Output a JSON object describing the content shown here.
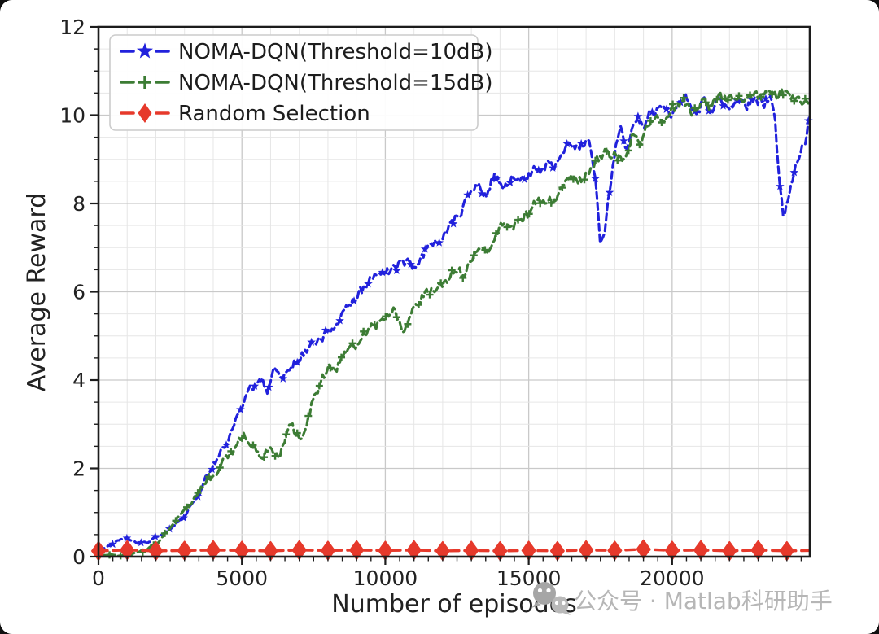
{
  "figure": {
    "background": "#ffffff",
    "page_background": "#101010",
    "spine_color": "#1c1c1c",
    "text_color": "#222222",
    "grid_minor_color": "#e6e6e6",
    "grid_major_color": "#c9c9c9"
  },
  "watermark": {
    "text": "公众号 · Matlab科研助手",
    "color": "#b6b6b6",
    "icon": "wechat-icon",
    "icon_color_big": "#a6a6a6",
    "icon_color_small": "#b9b9b9"
  },
  "chart_data": {
    "type": "line",
    "title": "",
    "xlabel": "Number of episodes",
    "ylabel": "Average Reward",
    "xlim": [
      0,
      24800
    ],
    "ylim": [
      0,
      12
    ],
    "x_ticks": [
      0,
      5000,
      10000,
      15000,
      20000
    ],
    "x_tick_labels": [
      "0",
      "5000",
      "10000",
      "15000",
      "20000"
    ],
    "x_minor_tick_step": 500,
    "x_minor_grid_step": 1000,
    "y_ticks": [
      0,
      2,
      4,
      6,
      8,
      10,
      12
    ],
    "y_tick_labels": [
      "0",
      "2",
      "4",
      "6",
      "8",
      "10",
      "12"
    ],
    "y_minor_step": 0.5,
    "grid": true,
    "legend_position": "upper-left",
    "series": [
      {
        "name": "NOMA-DQN(Threshold=10dB)",
        "color": "#2121dc",
        "style": "dashed",
        "marker": "star",
        "noise_amp": 0.16,
        "seed": 41,
        "marker_every": 9,
        "points": [
          [
            0,
            0.15
          ],
          [
            500,
            0.28
          ],
          [
            900,
            0.42
          ],
          [
            1300,
            0.32
          ],
          [
            1700,
            0.3
          ],
          [
            2000,
            0.45
          ],
          [
            2400,
            0.6
          ],
          [
            2700,
            0.72
          ],
          [
            3000,
            0.95
          ],
          [
            3300,
            1.2
          ],
          [
            3600,
            1.6
          ],
          [
            3900,
            2.0
          ],
          [
            4150,
            2.2
          ],
          [
            4400,
            2.5
          ],
          [
            4700,
            3.0
          ],
          [
            5000,
            3.5
          ],
          [
            5300,
            3.8
          ],
          [
            5500,
            3.9
          ],
          [
            5700,
            4.0
          ],
          [
            5900,
            3.85
          ],
          [
            6100,
            4.2
          ],
          [
            6400,
            4.1
          ],
          [
            6700,
            4.35
          ],
          [
            7000,
            4.5
          ],
          [
            7300,
            4.7
          ],
          [
            7600,
            4.9
          ],
          [
            8000,
            5.15
          ],
          [
            8300,
            5.3
          ],
          [
            8600,
            5.55
          ],
          [
            9000,
            5.85
          ],
          [
            9300,
            6.1
          ],
          [
            9600,
            6.3
          ],
          [
            9900,
            6.55
          ],
          [
            10200,
            6.5
          ],
          [
            10500,
            6.65
          ],
          [
            10800,
            6.75
          ],
          [
            11100,
            6.6
          ],
          [
            11400,
            6.9
          ],
          [
            11700,
            7.1
          ],
          [
            12000,
            7.25
          ],
          [
            12300,
            7.55
          ],
          [
            12600,
            7.8
          ],
          [
            12900,
            8.1
          ],
          [
            13200,
            8.4
          ],
          [
            13500,
            8.2
          ],
          [
            13800,
            8.55
          ],
          [
            14100,
            8.3
          ],
          [
            14400,
            8.6
          ],
          [
            14700,
            8.5
          ],
          [
            15000,
            8.65
          ],
          [
            15300,
            8.75
          ],
          [
            15600,
            8.95
          ],
          [
            15900,
            8.85
          ],
          [
            16200,
            9.05
          ],
          [
            16500,
            9.35
          ],
          [
            16800,
            9.2
          ],
          [
            17000,
            9.45
          ],
          [
            17200,
            9.1
          ],
          [
            17350,
            8.3
          ],
          [
            17500,
            6.95
          ],
          [
            17650,
            7.4
          ],
          [
            17800,
            8.2
          ],
          [
            18000,
            9.25
          ],
          [
            18200,
            9.7
          ],
          [
            18400,
            9.15
          ],
          [
            18600,
            9.6
          ],
          [
            18800,
            9.9
          ],
          [
            19000,
            9.7
          ],
          [
            19300,
            10.05
          ],
          [
            19600,
            10.15
          ],
          [
            19900,
            9.9
          ],
          [
            20200,
            10.25
          ],
          [
            20500,
            10.4
          ],
          [
            20800,
            10.1
          ],
          [
            21100,
            10.3
          ],
          [
            21400,
            10.15
          ],
          [
            21700,
            10.4
          ],
          [
            22000,
            10.1
          ],
          [
            22300,
            10.35
          ],
          [
            22600,
            10.2
          ],
          [
            22900,
            10.4
          ],
          [
            23200,
            10.25
          ],
          [
            23450,
            10.4
          ],
          [
            23600,
            9.7
          ],
          [
            23750,
            8.4
          ],
          [
            23900,
            7.65
          ],
          [
            24050,
            8.0
          ],
          [
            24200,
            8.5
          ],
          [
            24350,
            8.9
          ],
          [
            24500,
            9.2
          ],
          [
            24650,
            9.5
          ],
          [
            24800,
            10.15
          ]
        ]
      },
      {
        "name": "NOMA-DQN(Threshold=15dB)",
        "color": "#3c7c34",
        "style": "dashed",
        "marker": "plus",
        "noise_amp": 0.17,
        "seed": 97,
        "marker_every": 7,
        "points": [
          [
            0,
            0.05
          ],
          [
            700,
            0.05
          ],
          [
            1200,
            0.07
          ],
          [
            1600,
            0.12
          ],
          [
            2000,
            0.3
          ],
          [
            2400,
            0.55
          ],
          [
            2700,
            0.8
          ],
          [
            3000,
            1.05
          ],
          [
            3300,
            1.3
          ],
          [
            3600,
            1.55
          ],
          [
            3900,
            1.75
          ],
          [
            4200,
            2.0
          ],
          [
            4500,
            2.2
          ],
          [
            4800,
            2.45
          ],
          [
            5100,
            2.65
          ],
          [
            5300,
            2.55
          ],
          [
            5550,
            2.3
          ],
          [
            5750,
            2.2
          ],
          [
            5950,
            2.45
          ],
          [
            6150,
            2.35
          ],
          [
            6350,
            2.4
          ],
          [
            6550,
            2.75
          ],
          [
            6750,
            3.0
          ],
          [
            7000,
            2.5
          ],
          [
            7250,
            3.0
          ],
          [
            7500,
            3.6
          ],
          [
            7800,
            4.0
          ],
          [
            8100,
            4.2
          ],
          [
            8400,
            4.4
          ],
          [
            8700,
            4.6
          ],
          [
            9000,
            4.8
          ],
          [
            9300,
            5.0
          ],
          [
            9600,
            5.15
          ],
          [
            10000,
            5.35
          ],
          [
            10300,
            5.6
          ],
          [
            10600,
            4.9
          ],
          [
            10900,
            5.4
          ],
          [
            11200,
            5.75
          ],
          [
            11500,
            5.95
          ],
          [
            11800,
            6.05
          ],
          [
            12100,
            6.25
          ],
          [
            12400,
            6.45
          ],
          [
            12700,
            6.35
          ],
          [
            13000,
            6.75
          ],
          [
            13200,
            7.0
          ],
          [
            13500,
            6.8
          ],
          [
            13800,
            7.25
          ],
          [
            14100,
            7.5
          ],
          [
            14400,
            7.4
          ],
          [
            14700,
            7.65
          ],
          [
            15000,
            7.8
          ],
          [
            15300,
            8.0
          ],
          [
            15600,
            8.15
          ],
          [
            15900,
            8.05
          ],
          [
            16200,
            8.4
          ],
          [
            16500,
            8.6
          ],
          [
            16800,
            8.5
          ],
          [
            17100,
            8.8
          ],
          [
            17400,
            9.0
          ],
          [
            17700,
            9.2
          ],
          [
            18000,
            9.1
          ],
          [
            18350,
            9.0
          ],
          [
            18600,
            9.5
          ],
          [
            18900,
            9.4
          ],
          [
            19200,
            9.8
          ],
          [
            19500,
            10.0
          ],
          [
            19800,
            9.9
          ],
          [
            20100,
            10.1
          ],
          [
            20400,
            10.25
          ],
          [
            20700,
            10.05
          ],
          [
            21000,
            10.3
          ],
          [
            21300,
            10.15
          ],
          [
            21600,
            10.4
          ],
          [
            21900,
            10.3
          ],
          [
            22200,
            10.5
          ],
          [
            22500,
            10.35
          ],
          [
            22800,
            10.5
          ],
          [
            23100,
            10.4
          ],
          [
            23400,
            10.55
          ],
          [
            23700,
            10.4
          ],
          [
            24000,
            10.5
          ],
          [
            24300,
            10.45
          ],
          [
            24600,
            10.3
          ],
          [
            24800,
            10.2
          ]
        ]
      },
      {
        "name": "Random Selection",
        "color": "#e6392b",
        "style": "dashed",
        "marker": "diamond",
        "noise_amp": 0.015,
        "seed": 7,
        "marker_every_ep": 1000,
        "points": [
          [
            0,
            0.13
          ],
          [
            1000,
            0.15
          ],
          [
            2000,
            0.13
          ],
          [
            3000,
            0.14
          ],
          [
            4000,
            0.15
          ],
          [
            5000,
            0.14
          ],
          [
            6000,
            0.13
          ],
          [
            7000,
            0.15
          ],
          [
            8000,
            0.14
          ],
          [
            9000,
            0.15
          ],
          [
            10000,
            0.14
          ],
          [
            11000,
            0.15
          ],
          [
            12000,
            0.13
          ],
          [
            13000,
            0.14
          ],
          [
            14000,
            0.13
          ],
          [
            15000,
            0.14
          ],
          [
            16000,
            0.13
          ],
          [
            17000,
            0.15
          ],
          [
            18000,
            0.14
          ],
          [
            19000,
            0.17
          ],
          [
            20000,
            0.14
          ],
          [
            21000,
            0.15
          ],
          [
            22000,
            0.13
          ],
          [
            23000,
            0.15
          ],
          [
            24000,
            0.13
          ],
          [
            24800,
            0.14
          ]
        ]
      }
    ]
  }
}
